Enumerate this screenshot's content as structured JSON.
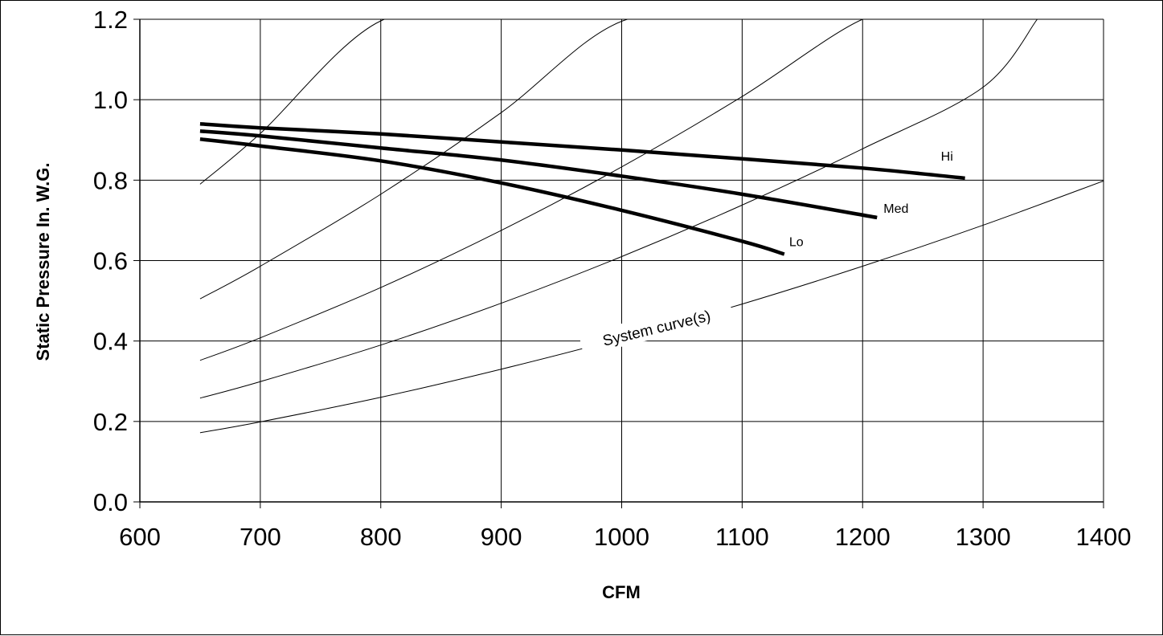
{
  "chart_data": {
    "type": "line",
    "title": "",
    "xlabel": "CFM",
    "ylabel": "Static Pressure In. W.G.",
    "xlim": [
      600,
      1400
    ],
    "ylim": [
      0.0,
      1.2
    ],
    "x_ticks": [
      600,
      700,
      800,
      900,
      1000,
      1100,
      1200,
      1300,
      1400
    ],
    "x_tick_labels": [
      "600",
      "700",
      "800",
      "900",
      "1000",
      "1100",
      "1200",
      "1300",
      "1400"
    ],
    "y_ticks": [
      0.0,
      0.2,
      0.4,
      0.6,
      0.8,
      1.0,
      1.2
    ],
    "y_tick_labels": [
      "0.0",
      "0.2",
      "0.4",
      "0.6",
      "0.8",
      "1.0",
      "1.2"
    ],
    "grid": true,
    "legend": "none",
    "series": [
      {
        "name": "Hi",
        "color": "#000000",
        "x": [
          650,
          700,
          800,
          900,
          1000,
          1100,
          1200,
          1285
        ],
        "y": [
          0.94,
          0.93,
          0.915,
          0.895,
          0.875,
          0.853,
          0.83,
          0.805
        ]
      },
      {
        "name": "Med",
        "color": "#000000",
        "x": [
          650,
          700,
          800,
          900,
          1000,
          1100,
          1212
        ],
        "y": [
          0.922,
          0.91,
          0.88,
          0.85,
          0.81,
          0.765,
          0.707
        ]
      },
      {
        "name": "Lo",
        "color": "#000000",
        "x": [
          650,
          700,
          800,
          900,
          1000,
          1100,
          1135
        ],
        "y": [
          0.902,
          0.885,
          0.848,
          0.793,
          0.725,
          0.648,
          0.616
        ]
      }
    ],
    "system_curves": {
      "label": "System curve(s)",
      "color": "#000000",
      "curves": [
        {
          "x": [
            650,
            700,
            800,
            900,
            1000,
            1100,
            1200,
            1300,
            1400
          ],
          "y": [
            0.172,
            0.199,
            0.26,
            0.33,
            0.407,
            0.492,
            0.586,
            0.688,
            0.798
          ]
        },
        {
          "x": [
            650,
            700,
            800,
            900,
            1000,
            1100,
            1200,
            1300,
            1345
          ],
          "y": [
            0.258,
            0.299,
            0.39,
            0.494,
            0.61,
            0.738,
            0.878,
            1.031,
            1.2
          ]
        },
        {
          "x": [
            650,
            700,
            800,
            900,
            1000,
            1100,
            1200,
            1248
          ],
          "y": [
            0.352,
            0.408,
            0.533,
            0.675,
            0.833,
            1.008,
            1.2,
            1.2
          ]
        },
        {
          "x": [
            650,
            700,
            800,
            900,
            1000,
            1100,
            1135
          ],
          "y": [
            0.505,
            0.586,
            0.765,
            0.968,
            1.195,
            1.2,
            1.2
          ]
        },
        {
          "x": [
            650,
            700,
            800,
            900,
            935
          ],
          "y": [
            0.79,
            0.916,
            1.196,
            1.2,
            1.2
          ]
        }
      ]
    }
  }
}
